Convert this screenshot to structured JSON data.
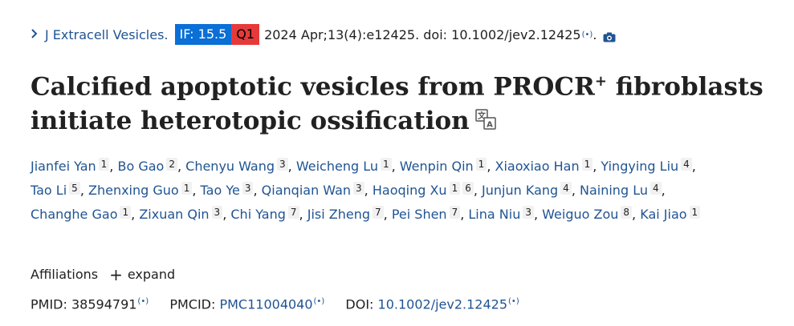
{
  "citation": {
    "journal": "J Extracell Vesicles.",
    "impact_factor": "IF: 15.5",
    "quartile": "Q1",
    "details": "2024 Apr;13(4):e12425. doi: 10.1002/jev2.12425",
    "radio_mark": "(•)",
    "end": "."
  },
  "title": {
    "main": "Calcified apoptotic vesicles from PROCR",
    "sup": "+",
    "rest": " fibroblasts initiate heterotopic ossification"
  },
  "authors": [
    {
      "name": "Jianfei Yan",
      "aff": "1"
    },
    {
      "name": "Bo Gao",
      "aff": "2"
    },
    {
      "name": "Chenyu Wang",
      "aff": "3"
    },
    {
      "name": "Weicheng Lu",
      "aff": "1"
    },
    {
      "name": "Wenpin Qin",
      "aff": "1"
    },
    {
      "name": "Xiaoxiao Han",
      "aff": "1"
    },
    {
      "name": "Yingying Liu",
      "aff": "4"
    },
    {
      "name": "Tao Li",
      "aff": "5"
    },
    {
      "name": "Zhenxing Guo",
      "aff": "1"
    },
    {
      "name": "Tao Ye",
      "aff": "3"
    },
    {
      "name": "Qianqian Wan",
      "aff": "3"
    },
    {
      "name": "Haoqing Xu",
      "aff": "1",
      "aff2": "6"
    },
    {
      "name": "Junjun Kang",
      "aff": "4"
    },
    {
      "name": "Naining Lu",
      "aff": "4"
    },
    {
      "name": "Changhe Gao",
      "aff": "1"
    },
    {
      "name": "Zixuan Qin",
      "aff": "3"
    },
    {
      "name": "Chi Yang",
      "aff": "7"
    },
    {
      "name": "Jisi Zheng",
      "aff": "7"
    },
    {
      "name": "Pei Shen",
      "aff": "7"
    },
    {
      "name": "Lina Niu",
      "aff": "3"
    },
    {
      "name": "Weiguo Zou",
      "aff": "8"
    },
    {
      "name": "Kai Jiao",
      "aff": "1"
    }
  ],
  "affiliations": {
    "label": "Affiliations",
    "expand": "expand"
  },
  "ids": {
    "pmid_label": "PMID:",
    "pmid": "38594791",
    "pmcid_label": "PMCID:",
    "pmcid": "PMC11004040",
    "doi_label": "DOI:",
    "doi": "10.1002/jev2.12425",
    "radio_mark": "(•)"
  },
  "colors": {
    "link": "#205493",
    "if_badge": "#0a6fd6",
    "q_badge": "#e63a3a",
    "aff_bg": "#f1f1f1"
  },
  "icons": [
    "chevron-right-icon",
    "camera-icon",
    "translate-icon",
    "plus-icon",
    "radio-signal-icon"
  ]
}
